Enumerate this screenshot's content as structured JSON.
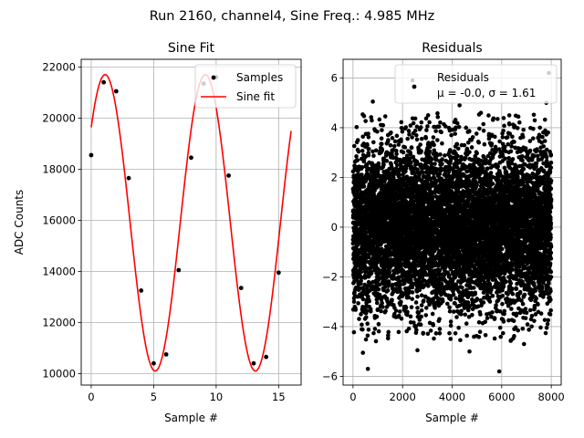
{
  "figure": {
    "suptitle": "Run 2160, channel4, Sine Freq.: 4.985 MHz"
  },
  "chart_data": [
    {
      "type": "scatter",
      "title": "Sine Fit",
      "xlabel": "Sample #",
      "ylabel": "ADC Counts",
      "xlim": [
        -0.8,
        16.8
      ],
      "ylim": [
        9550,
        22300
      ],
      "xticks": [
        0,
        5,
        10,
        15
      ],
      "yticks": [
        10000,
        12000,
        14000,
        16000,
        18000,
        20000,
        22000
      ],
      "grid": true,
      "legend": {
        "placement": "top-right",
        "entries": [
          "Samples",
          "Sine fit"
        ]
      },
      "series": [
        {
          "name": "Samples",
          "kind": "markers",
          "color": "#000000",
          "x": [
            0,
            1,
            2,
            3,
            4,
            5,
            6,
            7,
            8,
            9,
            10,
            11,
            12,
            13,
            14,
            15
          ],
          "y": [
            18550,
            21400,
            21050,
            17650,
            13250,
            10400,
            10750,
            14050,
            18450,
            21350,
            21600,
            17750,
            13350,
            10400,
            10650,
            13950
          ]
        },
        {
          "name": "Sine fit",
          "kind": "line",
          "color": "#ff0000",
          "model": {
            "offset": 15900,
            "amplitude": 5800,
            "period": 8.02,
            "phase": 0.7
          },
          "x_range": [
            0,
            16
          ]
        }
      ]
    },
    {
      "type": "scatter",
      "title": "Residuals",
      "xlabel": "Sample #",
      "ylabel": "",
      "xlim": [
        -400,
        8400
      ],
      "ylim": [
        -6.35,
        6.75
      ],
      "xticks": [
        0,
        2000,
        4000,
        6000,
        8000
      ],
      "yticks": [
        -6,
        -4,
        -2,
        0,
        2,
        4,
        6
      ],
      "grid": true,
      "legend": {
        "placement": "top-right",
        "entries": [
          "Residuals",
          "μ = -0.0, σ = 1.61"
        ]
      },
      "series": [
        {
          "name": "Residuals",
          "kind": "markers",
          "color": "#000000",
          "mean": -0.0,
          "std": 1.61,
          "n_points": 8000,
          "x_range": [
            0,
            7999
          ],
          "outliers": [
            {
              "x": 600,
              "y": -5.7
            },
            {
              "x": 5900,
              "y": -5.8
            },
            {
              "x": 2400,
              "y": 5.9
            },
            {
              "x": 7900,
              "y": 6.2
            },
            {
              "x": 800,
              "y": 5.05
            },
            {
              "x": 4300,
              "y": 4.9
            },
            {
              "x": 7800,
              "y": 5.0
            },
            {
              "x": 400,
              "y": -5.05
            },
            {
              "x": 2600,
              "y": -4.95
            },
            {
              "x": 4700,
              "y": -5.0
            },
            {
              "x": 6900,
              "y": -4.7
            }
          ]
        }
      ]
    }
  ]
}
